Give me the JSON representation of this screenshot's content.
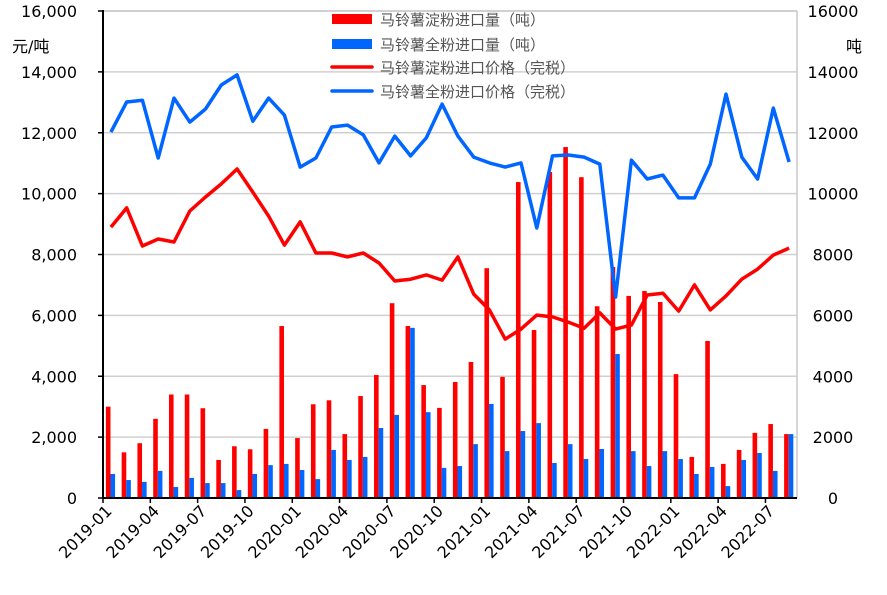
{
  "chart_data": {
    "type": "bar+line",
    "title": "",
    "left_unit": "元/吨",
    "right_unit": "吨",
    "ylim_left": [
      0,
      16000
    ],
    "ylim_right": [
      0,
      16000
    ],
    "left_ticks": [
      "0",
      "2,000",
      "4,000",
      "6,000",
      "8,000",
      "10,000",
      "12,000",
      "14,000",
      "16,000"
    ],
    "right_ticks": [
      "0",
      "2000",
      "4000",
      "6000",
      "8000",
      "10000",
      "12000",
      "14000",
      "16000"
    ],
    "tick_values": [
      0,
      2000,
      4000,
      6000,
      8000,
      10000,
      12000,
      14000,
      16000
    ],
    "grid": true,
    "legend_position": "top-center",
    "categories": [
      "2019-01",
      "2019-02",
      "2019-03",
      "2019-04",
      "2019-05",
      "2019-06",
      "2019-07",
      "2019-08",
      "2019-09",
      "2019-10",
      "2019-11",
      "2019-12",
      "2020-01",
      "2020-02",
      "2020-03",
      "2020-04",
      "2020-05",
      "2020-06",
      "2020-07",
      "2020-08",
      "2020-09",
      "2020-10",
      "2020-11",
      "2020-12",
      "2021-01",
      "2021-02",
      "2021-03",
      "2021-04",
      "2021-05",
      "2021-06",
      "2021-07",
      "2021-08",
      "2021-09",
      "2021-10",
      "2021-11",
      "2021-12",
      "2022-01",
      "2022-02",
      "2022-03",
      "2022-04",
      "2022-05",
      "2022-06",
      "2022-07",
      "2022-08"
    ],
    "x_tick_labels": [
      "2019-01",
      "2019-04",
      "2019-07",
      "2019-10",
      "2020-01",
      "2020-04",
      "2020-07",
      "2020-10",
      "2021-01",
      "2021-04",
      "2021-07",
      "2021-10",
      "2022-01",
      "2022-04",
      "2022-07"
    ],
    "series": [
      {
        "name": "马铃薯淀粉进口量（吨）",
        "kind": "bar",
        "axis": "right",
        "color": "#ff0000",
        "values": [
          3000,
          1500,
          1800,
          2600,
          3400,
          3400,
          2950,
          1250,
          1700,
          1600,
          2270,
          5650,
          1970,
          3080,
          3210,
          2100,
          3350,
          4040,
          6400,
          5650,
          3710,
          2960,
          3810,
          4470,
          7550,
          3980,
          10380,
          5520,
          10710,
          11530,
          10540,
          6300,
          7590,
          6640,
          6800,
          6440,
          4070,
          1350,
          5160,
          1120,
          1580,
          2140,
          2430,
          2100
        ]
      },
      {
        "name": "马铃薯全粉进口量（吨）",
        "kind": "bar",
        "axis": "right",
        "color": "#0066ff",
        "values": [
          790,
          590,
          530,
          890,
          360,
          660,
          490,
          490,
          260,
          790,
          1080,
          1120,
          920,
          620,
          1580,
          1250,
          1350,
          2300,
          2730,
          5590,
          2820,
          990,
          1050,
          1770,
          3090,
          1540,
          2200,
          2460,
          1150,
          1770,
          1280,
          1610,
          4730,
          1540,
          1050,
          1540,
          1280,
          790,
          1020,
          390,
          1250,
          1480,
          890,
          2100
        ]
      },
      {
        "name": "马铃薯淀粉进口价格（完税）",
        "kind": "line",
        "axis": "left",
        "color": "#ff0000",
        "values": [
          8900,
          9530,
          8280,
          8510,
          8410,
          9430,
          9890,
          10320,
          10810,
          10050,
          9260,
          8310,
          9070,
          8050,
          8050,
          7920,
          8050,
          7720,
          7130,
          7190,
          7330,
          7160,
          7920,
          6700,
          6180,
          5220,
          5550,
          6010,
          5950,
          5780,
          5580,
          6080,
          5550,
          5680,
          6670,
          6730,
          6140,
          7000,
          6180,
          6640,
          7190,
          7520,
          7980,
          8210
        ]
      },
      {
        "name": "马铃薯全粉进口价格（完税）",
        "kind": "line",
        "axis": "left",
        "color": "#0066ff",
        "values": [
          12020,
          13010,
          13070,
          11170,
          13140,
          12350,
          12780,
          13570,
          13900,
          12380,
          13140,
          12580,
          10870,
          11170,
          12190,
          12250,
          11930,
          11010,
          11890,
          11240,
          11830,
          12940,
          11890,
          11200,
          11010,
          10870,
          11010,
          8870,
          11240,
          11270,
          11200,
          10970,
          6600,
          11100,
          10480,
          10610,
          9860,
          9860,
          10970,
          13270,
          11200,
          10480,
          12810,
          11040
        ]
      }
    ]
  }
}
